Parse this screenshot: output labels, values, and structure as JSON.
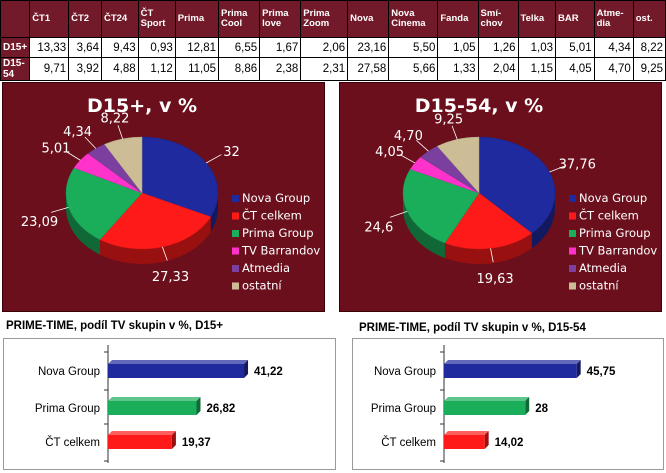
{
  "table": {
    "headers": [
      "ČT1",
      "ČT2",
      "ČT24",
      "ČT Sport",
      "Prima",
      "Prima Cool",
      "Prima love",
      "Prima Zoom",
      "Nova",
      "Nova Cinema",
      "Fanda",
      "Smí- chov",
      "Telka",
      "BAR",
      "Atme- dia",
      "ost."
    ],
    "rows": [
      {
        "label": "D15+",
        "values": [
          "13,33",
          "3,64",
          "9,43",
          "0,93",
          "12,81",
          "6,55",
          "1,67",
          "2,06",
          "23,16",
          "5,50",
          "1,05",
          "1,26",
          "1,03",
          "5,01",
          "4,34",
          "8,22"
        ]
      },
      {
        "label": "D15-54",
        "values": [
          "9,71",
          "3,92",
          "4,88",
          "1,12",
          "11,05",
          "8,86",
          "2,38",
          "2,31",
          "27,58",
          "5,66",
          "1,33",
          "2,04",
          "1,15",
          "4,05",
          "4,70",
          "9,25"
        ]
      }
    ]
  },
  "colors": {
    "panel_bg": "#6b0f1c",
    "Nova Group": "#1f2a9e",
    "ČT celkem": "#ff1a1a",
    "Prima Group": "#1aad5a",
    "TV Barrandov": "#ff33cc",
    "Atmedia": "#7b3fa0",
    "ostatní": "#cdbd97"
  },
  "chart_data": [
    {
      "type": "pie",
      "title": "D15+, v %",
      "legend_position": "right",
      "categories": [
        "Nova Group",
        "ČT celkem",
        "Prima Group",
        "TV Barrandov",
        "Atmedia",
        "ostatní"
      ],
      "values": [
        32,
        27.33,
        23.09,
        5.01,
        4.34,
        8.22
      ],
      "labels": [
        "32",
        "27,33",
        "23,09",
        "5,01",
        "4,34",
        "8,22"
      ]
    },
    {
      "type": "pie",
      "title": "D15-54, v %",
      "legend_position": "right",
      "categories": [
        "Nova Group",
        "ČT celkem",
        "Prima Group",
        "TV Barrandov",
        "Atmedia",
        "ostatní"
      ],
      "values": [
        37.76,
        19.63,
        24.6,
        4.05,
        4.7,
        9.25
      ],
      "labels": [
        "37,76",
        "19,63",
        "24,6",
        "4,05",
        "4,70",
        "9,25"
      ]
    },
    {
      "type": "bar",
      "orientation": "horizontal",
      "title": "PRIME-TIME, podíl TV skupin v %, D15+",
      "categories": [
        "Nova Group",
        "Prima Group",
        "ČT celkem"
      ],
      "values": [
        41.22,
        26.82,
        19.37
      ],
      "labels": [
        "41,22",
        "26,82",
        "19,37"
      ]
    },
    {
      "type": "bar",
      "orientation": "horizontal",
      "title": "PRIME-TIME, podíl TV skupin v %, D15-54",
      "categories": [
        "Nova Group",
        "Prima Group",
        "ČT celkem"
      ],
      "values": [
        45.75,
        28,
        14.02
      ],
      "labels": [
        "45,75",
        "28",
        "14,02"
      ]
    }
  ]
}
